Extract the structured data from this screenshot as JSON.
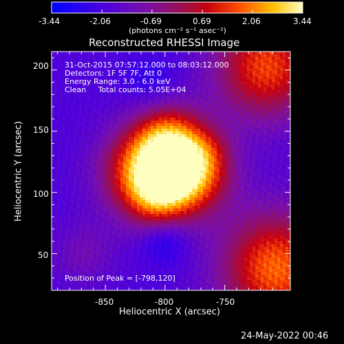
{
  "chart_data": {
    "type": "heatmap",
    "title": "Reconstructed RHESSI Image",
    "xlabel": "Heliocentric X (arcsec)",
    "ylabel": "Heliocentric Y (arcsec)",
    "xlim": [
      -895,
      -695
    ],
    "ylim": [
      20,
      215
    ],
    "xticks": [
      -850,
      -800,
      -750
    ],
    "xtick_labels": [
      "-850",
      "-800",
      "-750"
    ],
    "yticks": [
      50,
      100,
      150,
      200
    ],
    "ytick_labels": [
      "50",
      "100",
      "150",
      "200"
    ],
    "colorbar": {
      "range": [
        -3.44,
        3.44
      ],
      "tick_labels": [
        "-3.44",
        "-2.06",
        "-0.69",
        "0.69",
        "2.06",
        "3.44"
      ],
      "unit_label": "(photons cm⁻² s⁻¹ asec⁻²)"
    },
    "annotations": [
      "31-Oct-2015 07:57:12.000 to 08:03:12.000",
      "Detectors: 1F 5F 7F, Att 0",
      "Energy Range: 3.0 - 6.0 keV",
      "Clean     Total counts: 5.05E+04"
    ],
    "peak_label": "Position of Peak = [-798,120]",
    "peak_position": [
      -798,
      120
    ],
    "timestamp": "24-May-2022 00:46",
    "grid": false
  }
}
